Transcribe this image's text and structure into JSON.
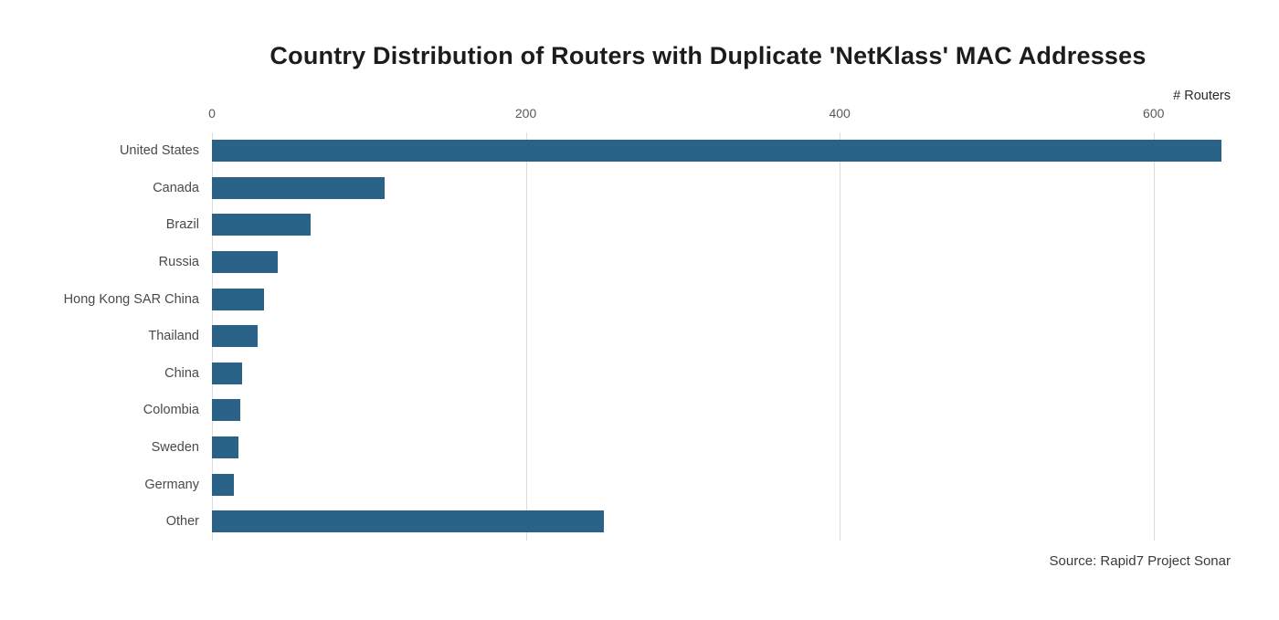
{
  "chart_data": {
    "type": "bar",
    "orientation": "horizontal",
    "title": "Country Distribution of Routers with Duplicate 'NetKlass' MAC Addresses",
    "xlabel": "# Routers",
    "categories": [
      "United States",
      "Canada",
      "Brazil",
      "Russia",
      "Hong Kong SAR China",
      "Thailand",
      "China",
      "Colombia",
      "Sweden",
      "Germany",
      "Other"
    ],
    "values": [
      643,
      110,
      63,
      42,
      33,
      29,
      19,
      18,
      17,
      14,
      250
    ],
    "xticks": [
      0,
      200,
      400,
      600
    ],
    "xlim": [
      0,
      677
    ],
    "grid": true,
    "legend": "none",
    "bar_color": "#2b6287",
    "grid_color": "#dcdcdc",
    "source": "Source: Rapid7 Project Sonar"
  }
}
